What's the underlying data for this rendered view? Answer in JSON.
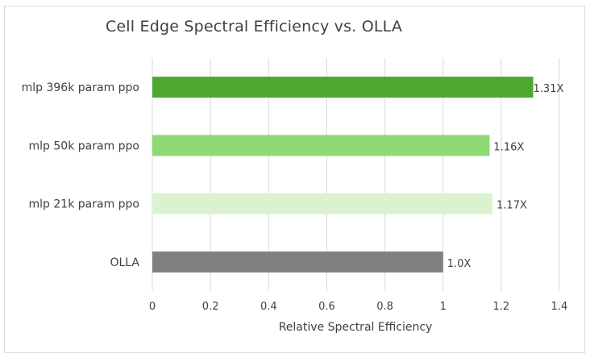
{
  "chart_data": {
    "type": "bar",
    "orientation": "horizontal",
    "title": "Cell Edge Spectral Efficiency vs. OLLA",
    "xlabel": "Relative Spectral Efficiency",
    "ylabel": "",
    "xlim": [
      0,
      1.4
    ],
    "xticks": [
      0,
      0.2,
      0.4,
      0.6,
      0.8,
      1,
      1.2,
      1.4
    ],
    "xtick_labels": [
      "0",
      "0.2",
      "0.4",
      "0.6",
      "0.8",
      "1",
      "1.2",
      "1.4"
    ],
    "grid": "vertical",
    "bars": [
      {
        "category": "mlp 396k param ppo",
        "value": 1.31,
        "label": "1.31X",
        "color": "#4ea72e"
      },
      {
        "category": "mlp 50k param ppo",
        "value": 1.16,
        "label": "1.16X",
        "color": "#8ed973"
      },
      {
        "category": "mlp 21k param ppo",
        "value": 1.17,
        "label": "1.17X",
        "color": "#daf2d0"
      },
      {
        "category": "OLLA",
        "value": 1.0,
        "label": "1.0X",
        "color": "#808080"
      }
    ]
  }
}
